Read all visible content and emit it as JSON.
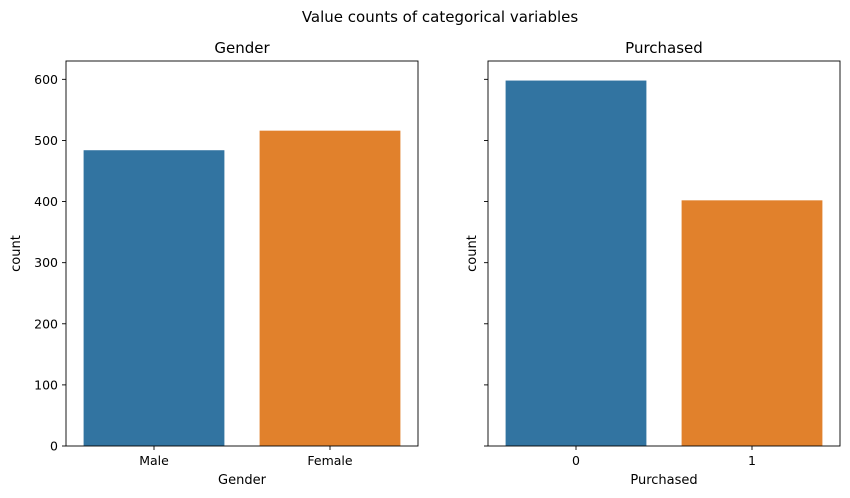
{
  "figure": {
    "suptitle": "Value counts of categorical variables"
  },
  "chart_data": [
    {
      "type": "bar",
      "title": "Gender",
      "xlabel": "Gender",
      "ylabel": "count",
      "categories": [
        "Male",
        "Female"
      ],
      "values": [
        484,
        516
      ],
      "ylim": [
        0,
        630
      ],
      "yticks": [
        0,
        100,
        200,
        300,
        400,
        500,
        600
      ],
      "colors": [
        "#3274a1",
        "#e1812c"
      ],
      "grid": false,
      "show_ytick_labels": true
    },
    {
      "type": "bar",
      "title": "Purchased",
      "xlabel": "Purchased",
      "ylabel": "count",
      "categories": [
        "0",
        "1"
      ],
      "values": [
        598,
        402
      ],
      "ylim": [
        0,
        630
      ],
      "yticks": [
        0,
        100,
        200,
        300,
        400,
        500,
        600
      ],
      "colors": [
        "#3274a1",
        "#e1812c"
      ],
      "grid": false,
      "show_ytick_labels": false
    }
  ]
}
